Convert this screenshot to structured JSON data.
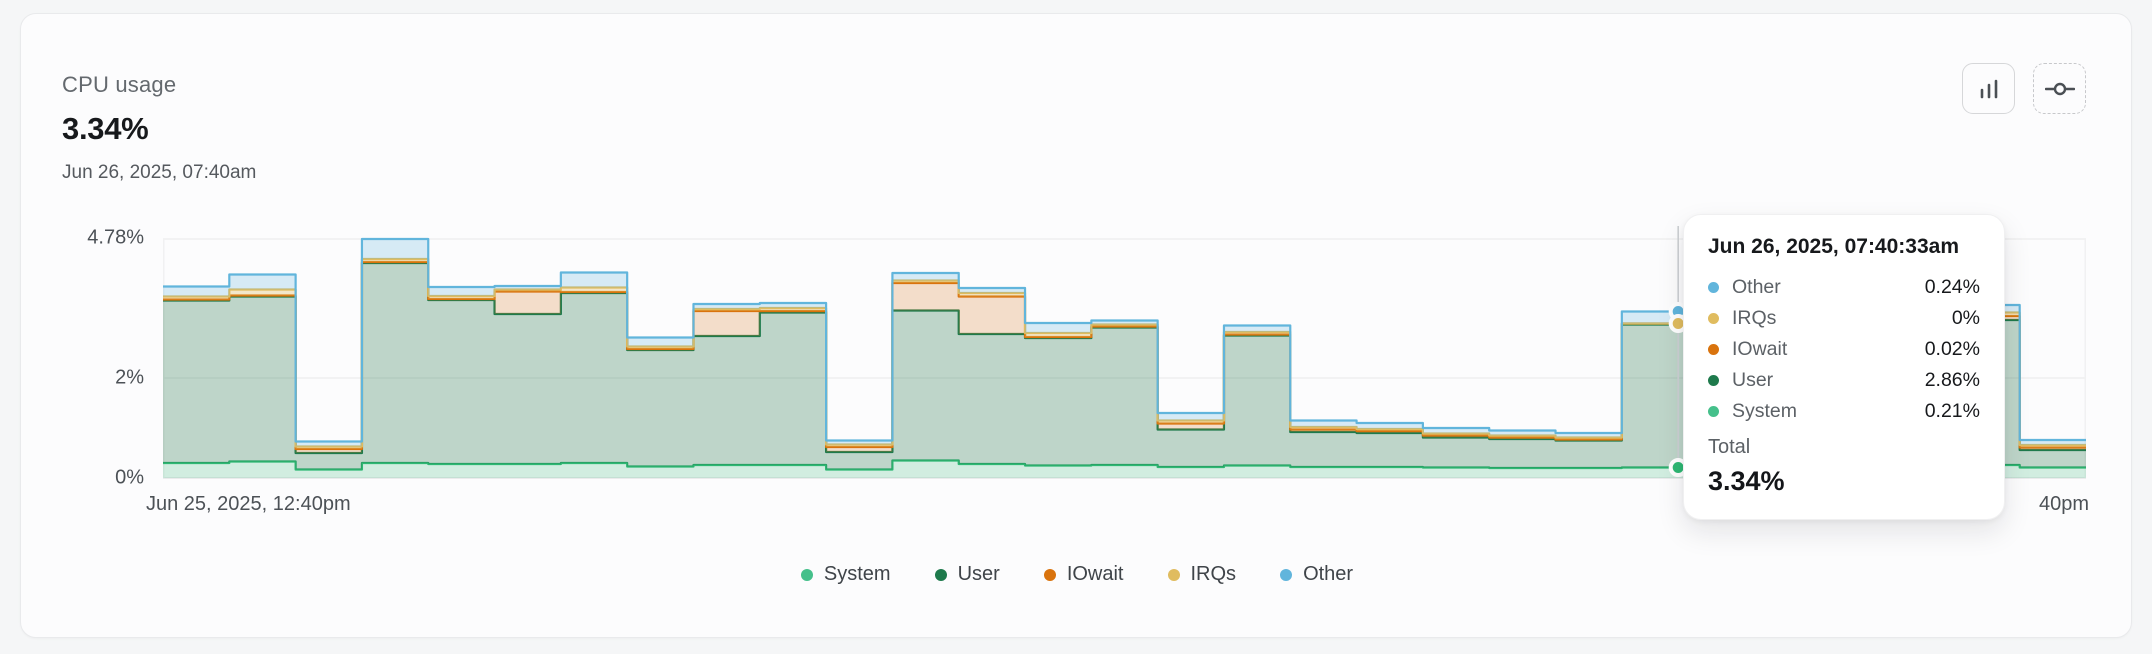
{
  "card": {
    "title": "CPU usage",
    "value": "3.34%",
    "date": "Jun 26, 2025, 07:40am"
  },
  "toolbar": {
    "buttons": [
      {
        "name": "bar-chart-view",
        "icon": "bar-chart-icon"
      },
      {
        "name": "threshold",
        "icon": "threshold-commit-icon"
      }
    ]
  },
  "chart_data": {
    "type": "area",
    "stacked": true,
    "step": true,
    "title": "CPU usage over time",
    "ylim": [
      0,
      4.8
    ],
    "grid": "horizontal",
    "yticks": [
      {
        "label": "4.78%",
        "value": 4.78
      },
      {
        "label": "2%",
        "value": 2
      },
      {
        "label": "0%",
        "value": 0
      }
    ],
    "xticks": {
      "left": "Jun 25, 2025, 12:40pm",
      "right_visible": "40pm"
    },
    "legend_position": "bottom-center",
    "series": [
      {
        "name": "System",
        "color": "#2eb873",
        "fill": "rgba(61,185,125,0.22)",
        "values": [
          0.3,
          0.33,
          0.17,
          0.3,
          0.28,
          0.28,
          0.3,
          0.23,
          0.26,
          0.26,
          0.17,
          0.35,
          0.28,
          0.25,
          0.26,
          0.22,
          0.25,
          0.22,
          0.22,
          0.21,
          0.2,
          0.2,
          0.21,
          0.2,
          0.22,
          0.23,
          0.24,
          0.26,
          0.21
        ]
      },
      {
        "name": "User",
        "color": "#1e7a4c",
        "fill": "rgba(30,110,70,0.28)",
        "values": [
          3.25,
          3.3,
          0.33,
          4.0,
          3.28,
          3.0,
          3.4,
          2.33,
          2.58,
          3.05,
          0.35,
          3.0,
          2.6,
          2.55,
          2.75,
          0.75,
          2.6,
          0.7,
          0.68,
          0.6,
          0.58,
          0.55,
          2.86,
          2.8,
          2.75,
          2.85,
          2.9,
          2.9,
          0.35
        ]
      },
      {
        "name": "IOwait",
        "color": "#d9730d",
        "fill": "rgba(217,125,40,0.24)",
        "values": [
          0.02,
          0.02,
          0.08,
          0.02,
          0.02,
          0.45,
          0.02,
          0.02,
          0.5,
          0.03,
          0.1,
          0.55,
          0.75,
          0.02,
          0.02,
          0.12,
          0.02,
          0.05,
          0.04,
          0.04,
          0.03,
          0.02,
          0.02,
          0.02,
          0.02,
          0.02,
          0.02,
          0.08,
          0.05
        ]
      },
      {
        "name": "IRQs",
        "color": "#e0bc5f",
        "fill": "rgba(224,188,95,0.32)",
        "values": [
          0.06,
          0.12,
          0.05,
          0.06,
          0.06,
          0.04,
          0.09,
          0.05,
          0.04,
          0.06,
          0.05,
          0.05,
          0.07,
          0.08,
          0.04,
          0.06,
          0.05,
          0.05,
          0.04,
          0.04,
          0.04,
          0.04,
          0.0,
          0.02,
          0.02,
          0.02,
          0.02,
          0.07,
          0.05
        ]
      },
      {
        "name": "Other",
        "color": "#61b5dc",
        "fill": "rgba(97,181,220,0.24)",
        "values": [
          0.2,
          0.3,
          0.1,
          0.4,
          0.18,
          0.07,
          0.3,
          0.18,
          0.1,
          0.1,
          0.08,
          0.15,
          0.1,
          0.2,
          0.08,
          0.15,
          0.13,
          0.13,
          0.12,
          0.11,
          0.1,
          0.09,
          0.24,
          0.2,
          0.2,
          0.2,
          0.2,
          0.15,
          0.1
        ]
      }
    ],
    "hover": {
      "index": 22,
      "offset_in_step": 0.85,
      "markers": [
        "Other",
        "IRQs",
        "System"
      ]
    }
  },
  "tooltip": {
    "title": "Jun 26, 2025, 07:40:33am",
    "rows": [
      {
        "name": "Other",
        "value": "0.24%",
        "color": "#61b5dc"
      },
      {
        "name": "IRQs",
        "value": "0%",
        "color": "#e0bc5f"
      },
      {
        "name": "IOwait",
        "value": "0.02%",
        "color": "#d9730d"
      },
      {
        "name": "User",
        "value": "2.86%",
        "color": "#1e7a4c"
      },
      {
        "name": "System",
        "value": "0.21%",
        "color": "#45c08b"
      }
    ],
    "total_label": "Total",
    "total_value": "3.34%"
  }
}
